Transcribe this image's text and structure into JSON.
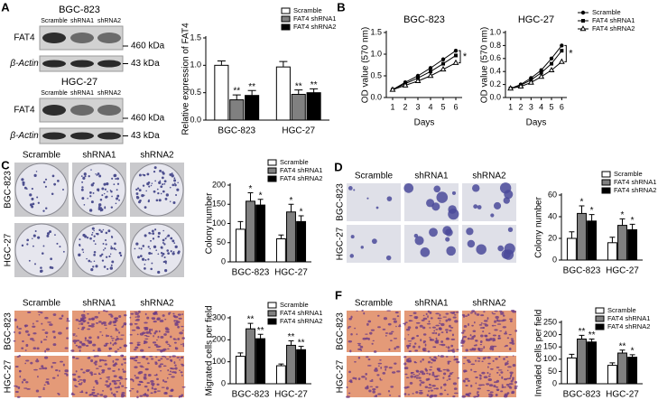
{
  "chart_data": [
    {
      "type": "bar",
      "ylabel": "Relative expression of FAT4",
      "categories": [
        "BGC-823",
        "HGC-27"
      ],
      "ylim": [
        0,
        1.5
      ],
      "yticks": [
        {
          "value": 0,
          "label": "0.0"
        },
        0.5,
        {
          "value": 1,
          "label": "1.0"
        },
        1.5
      ],
      "series": [
        {
          "name": "Scramble",
          "color": "#ffffff",
          "values": [
            1.0,
            0.97
          ],
          "errors": [
            0.08,
            0.1
          ]
        },
        {
          "name": "FAT4 shRNA1",
          "color": "#808080",
          "values": [
            0.37,
            0.47
          ],
          "errors": [
            0.09,
            0.08
          ],
          "significance": [
            "**",
            "**"
          ]
        },
        {
          "name": "FAT4 shRNA2",
          "color": "#000000",
          "values": [
            0.45,
            0.5
          ],
          "errors": [
            0.09,
            0.07
          ],
          "significance": [
            "**",
            "**"
          ]
        }
      ]
    },
    {
      "type": "line",
      "title": "BGC-823",
      "xlabel": "Days",
      "ylabel": "OD value (570 nm)",
      "annotation": "*",
      "x": [
        1,
        2,
        3,
        4,
        5,
        6
      ],
      "xlim": [
        0.5,
        6.5
      ],
      "xticks": [
        1,
        2,
        3,
        4,
        5,
        6
      ],
      "ylim": [
        0,
        1.5
      ],
      "yticks": [
        {
          "value": 0,
          "label": "0.0"
        },
        0.5,
        {
          "value": 1,
          "label": "1.0"
        },
        1.5
      ],
      "series": [
        {
          "color": "#000000",
          "marker": "circle",
          "values": [
            0.18,
            0.35,
            0.5,
            0.68,
            0.88,
            1.08
          ]
        },
        {
          "color": "#000000",
          "marker": "square",
          "values": [
            0.18,
            0.32,
            0.45,
            0.6,
            0.78,
            0.97
          ]
        },
        {
          "color": "#000000",
          "marker": "triangle",
          "values": [
            0.18,
            0.28,
            0.38,
            0.5,
            0.65,
            0.8
          ]
        }
      ]
    },
    {
      "type": "line",
      "title": "HGC-27",
      "xlabel": "Days",
      "ylabel": "OD value (570 nm)",
      "annotation": "*",
      "x": [
        1,
        2,
        3,
        4,
        5,
        6
      ],
      "xlim": [
        0.5,
        6.5
      ],
      "xticks": [
        1,
        2,
        3,
        4,
        5,
        6
      ],
      "ylim": [
        0,
        1.0
      ],
      "yticks": [
        {
          "value": 0,
          "label": "0.0"
        },
        0.2,
        0.4,
        0.6,
        0.8,
        {
          "value": 1,
          "label": "1.0"
        }
      ],
      "series": [
        {
          "name": "Scramble",
          "color": "#000000",
          "marker": "circle",
          "values": [
            0.14,
            0.2,
            0.3,
            0.42,
            0.6,
            0.8
          ]
        },
        {
          "name": "FAT4 shRNA1",
          "color": "#000000",
          "marker": "square",
          "values": [
            0.14,
            0.19,
            0.27,
            0.38,
            0.52,
            0.72
          ]
        },
        {
          "name": "FAT4 shRNA2",
          "color": "#000000",
          "marker": "triangle",
          "values": [
            0.14,
            0.17,
            0.23,
            0.32,
            0.42,
            0.55
          ]
        }
      ]
    },
    {
      "type": "bar",
      "ylabel": "Colony number",
      "categories": [
        "BGC-823",
        "HGC-27"
      ],
      "ylim": [
        0,
        200
      ],
      "yticks": [
        0,
        50,
        100,
        150,
        200
      ],
      "series": [
        {
          "name": "Scramble",
          "color": "#ffffff",
          "values": [
            85,
            60
          ],
          "errors": [
            20,
            10
          ]
        },
        {
          "name": "FAT4 shRNA1",
          "color": "#808080",
          "values": [
            158,
            130
          ],
          "errors": [
            22,
            20
          ],
          "significance": [
            "*",
            "*"
          ]
        },
        {
          "name": "FAT4 shRNA2",
          "color": "#000000",
          "values": [
            148,
            105
          ],
          "errors": [
            15,
            15
          ],
          "significance": [
            "*",
            "*"
          ]
        }
      ]
    },
    {
      "type": "bar",
      "ylabel": "Colony number",
      "categories": [
        "BGC-823",
        "HGC-27"
      ],
      "ylim": [
        0,
        60
      ],
      "yticks": [
        0,
        20,
        40,
        60
      ],
      "series": [
        {
          "name": "Scramble",
          "color": "#ffffff",
          "values": [
            20,
            16
          ],
          "errors": [
            6,
            5
          ]
        },
        {
          "name": "FAT4 shRNA1",
          "color": "#808080",
          "values": [
            43,
            32
          ],
          "errors": [
            7,
            6
          ],
          "significance": [
            "*",
            "*"
          ]
        },
        {
          "name": "FAT4 shRNA2",
          "color": "#000000",
          "values": [
            36,
            28
          ],
          "errors": [
            6,
            5
          ],
          "significance": [
            "*",
            "*"
          ]
        }
      ]
    },
    {
      "type": "bar",
      "ylabel": "Migrated cells per field",
      "categories": [
        "BGC-823",
        "HGC-27"
      ],
      "ylim": [
        0,
        300
      ],
      "yticks": [
        0,
        100,
        200,
        300
      ],
      "series": [
        {
          "name": "Scramble",
          "color": "#ffffff",
          "values": [
            125,
            82
          ],
          "errors": [
            15,
            8
          ]
        },
        {
          "name": "FAT4 shRNA1",
          "color": "#808080",
          "values": [
            250,
            175
          ],
          "errors": [
            25,
            20
          ],
          "significance": [
            "**",
            "**"
          ]
        },
        {
          "name": "FAT4 shRNA2",
          "color": "#000000",
          "values": [
            205,
            155
          ],
          "errors": [
            20,
            15
          ],
          "significance": [
            "**",
            "**"
          ]
        }
      ]
    },
    {
      "type": "bar",
      "ylabel": "Invaded cells per field",
      "categories": [
        "BGC-823",
        "HGC-27"
      ],
      "ylim": [
        0,
        250
      ],
      "yticks": [
        0,
        50,
        100,
        150,
        200,
        250
      ],
      "series": [
        {
          "name": "Scramble",
          "color": "#ffffff",
          "values": [
            105,
            75
          ],
          "errors": [
            15,
            10
          ]
        },
        {
          "name": "FAT4 shRNA1",
          "color": "#808080",
          "values": [
            182,
            125
          ],
          "errors": [
            15,
            12
          ],
          "significance": [
            "**",
            "**"
          ]
        },
        {
          "name": "FAT4 shRNA2",
          "color": "#000000",
          "values": [
            170,
            108
          ],
          "errors": [
            12,
            10
          ],
          "significance": [
            "**",
            "*"
          ]
        }
      ]
    }
  ],
  "figure": {
    "panel_labels": [
      "A",
      "B",
      "C",
      "D",
      "F"
    ],
    "blots": [
      {
        "title": "BGC-823",
        "lanes": [
          "Scramble",
          "shRNA1",
          "shRNA2"
        ],
        "rows": [
          {
            "label": "FAT4",
            "size": "460 kDa"
          },
          {
            "label": "β-Actin",
            "size": "43 kDa"
          }
        ]
      },
      {
        "title": "HGC-27",
        "lanes": [
          "Scramble",
          "shRNA1",
          "shRNA2"
        ],
        "rows": [
          {
            "label": "FAT4",
            "size": "460 kDa"
          },
          {
            "label": "β-Actin",
            "size": "43 kDa"
          }
        ]
      }
    ],
    "image_panels": [
      {
        "columns": [
          "Scramble",
          "shRNA1",
          "shRNA2"
        ],
        "rows": [
          "BGC-823",
          "HGC-27"
        ]
      },
      {
        "columns": [
          "Scramble",
          "shRNA1",
          "shRNA2"
        ],
        "rows": [
          "BGC-823",
          "HGC-27"
        ]
      },
      {
        "columns": [
          "Scramble",
          "shRNA1",
          "shRNA2"
        ],
        "rows": [
          "BGC-823",
          "HGC-27"
        ]
      },
      {
        "columns": [
          "Scramble",
          "shRNA1",
          "shRNA2"
        ],
        "rows": [
          "BGC-823",
          "HGC-27"
        ]
      }
    ]
  }
}
